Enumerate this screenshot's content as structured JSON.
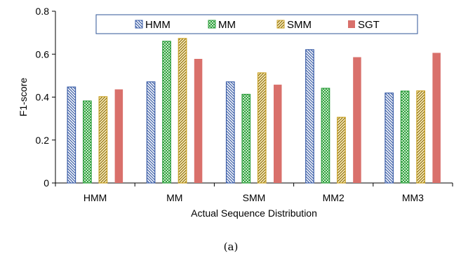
{
  "chart_data": {
    "type": "bar",
    "categories": [
      "HMM",
      "MM",
      "SMM",
      "MM2",
      "MM3"
    ],
    "series": [
      {
        "name": "HMM",
        "values": [
          0.447,
          0.471,
          0.471,
          0.621,
          0.419
        ],
        "color": "#3d5fa8",
        "pattern": "back-diagonal-hatch"
      },
      {
        "name": "MM",
        "values": [
          0.382,
          0.66,
          0.413,
          0.441,
          0.428
        ],
        "color": "#2e9e3e",
        "pattern": "checker"
      },
      {
        "name": "SMM",
        "values": [
          0.402,
          0.673,
          0.513,
          0.306,
          0.429
        ],
        "color": "#c9a227",
        "pattern": "forward-diagonal-hatch"
      },
      {
        "name": "SGT",
        "values": [
          0.436,
          0.578,
          0.458,
          0.586,
          0.606
        ],
        "color": "#d9706b",
        "pattern": "solid"
      }
    ],
    "xlabel": "Actual Sequence Distribution",
    "ylabel": "F1-score",
    "ylim": [
      0,
      0.8
    ],
    "yticks": [
      0,
      0.2,
      0.4,
      0.6,
      0.8
    ],
    "ytick_labels": [
      "0",
      "0.2",
      "0.4",
      "0.6",
      "0.8"
    ],
    "grid": false,
    "legend_position": "top-center"
  },
  "caption": "(a)"
}
